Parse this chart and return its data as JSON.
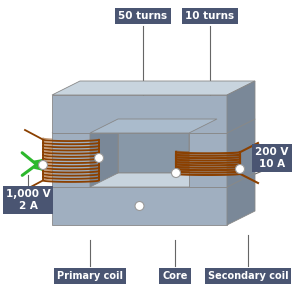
{
  "fig_width": 3.04,
  "fig_height": 2.89,
  "dpi": 100,
  "bg_color": "#ffffff",
  "core_front": "#a0afc0",
  "core_top": "#c8d4de",
  "core_right": "#7a8898",
  "coil_color": "#8B4000",
  "arrow_color": "#2db82d",
  "label_bg": "#4a5572",
  "label_text": "#ffffff",
  "label_top_left": "50 turns",
  "label_top_right": "10 turns",
  "label_left": "1,000 V\n2 A",
  "label_right": "200 V\n10 A",
  "labels_bottom": [
    "Primary coil",
    "Core",
    "Secondary coil"
  ]
}
